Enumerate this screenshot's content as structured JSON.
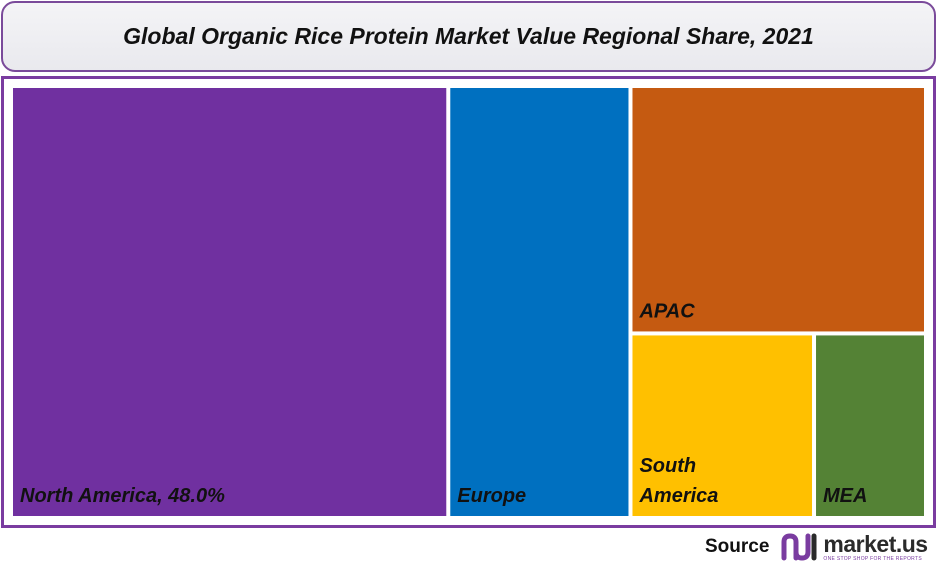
{
  "title": "Global Organic Rice Protein Market Value Regional Share, 2021",
  "chart_data": {
    "type": "treemap",
    "title": "Global Organic Rice Protein Market Value Regional Share, 2021",
    "unit": "%",
    "segments": [
      {
        "name": "North America",
        "label_lines": [
          "North America, 48.0%"
        ],
        "value": 48.0,
        "color": "#7030A0"
      },
      {
        "name": "Europe",
        "label_lines": [
          "Europe"
        ],
        "value": 20.0,
        "color": "#0070C0"
      },
      {
        "name": "APAC",
        "label_lines": [
          "APAC"
        ],
        "value": 18.5,
        "color": "#C55A11"
      },
      {
        "name": "South America",
        "label_lines": [
          "South",
          "America"
        ],
        "value": 8.5,
        "color": "#FFC000"
      },
      {
        "name": "MEA",
        "label_lines": [
          "MEA"
        ],
        "value": 5.0,
        "color": "#548235"
      }
    ]
  },
  "footer": {
    "source_label": "Source",
    "logo_name": "market.us",
    "logo_tagline": "ONE STOP SHOP FOR THE REPORTS"
  },
  "colors": {
    "frame": "#7a3ca0",
    "title_border": "#7a4a9a",
    "logo_accent": "#7a3ca0"
  }
}
